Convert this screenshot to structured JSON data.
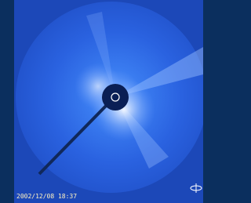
{
  "timestamp": "2002/12/08 18:37"
}
